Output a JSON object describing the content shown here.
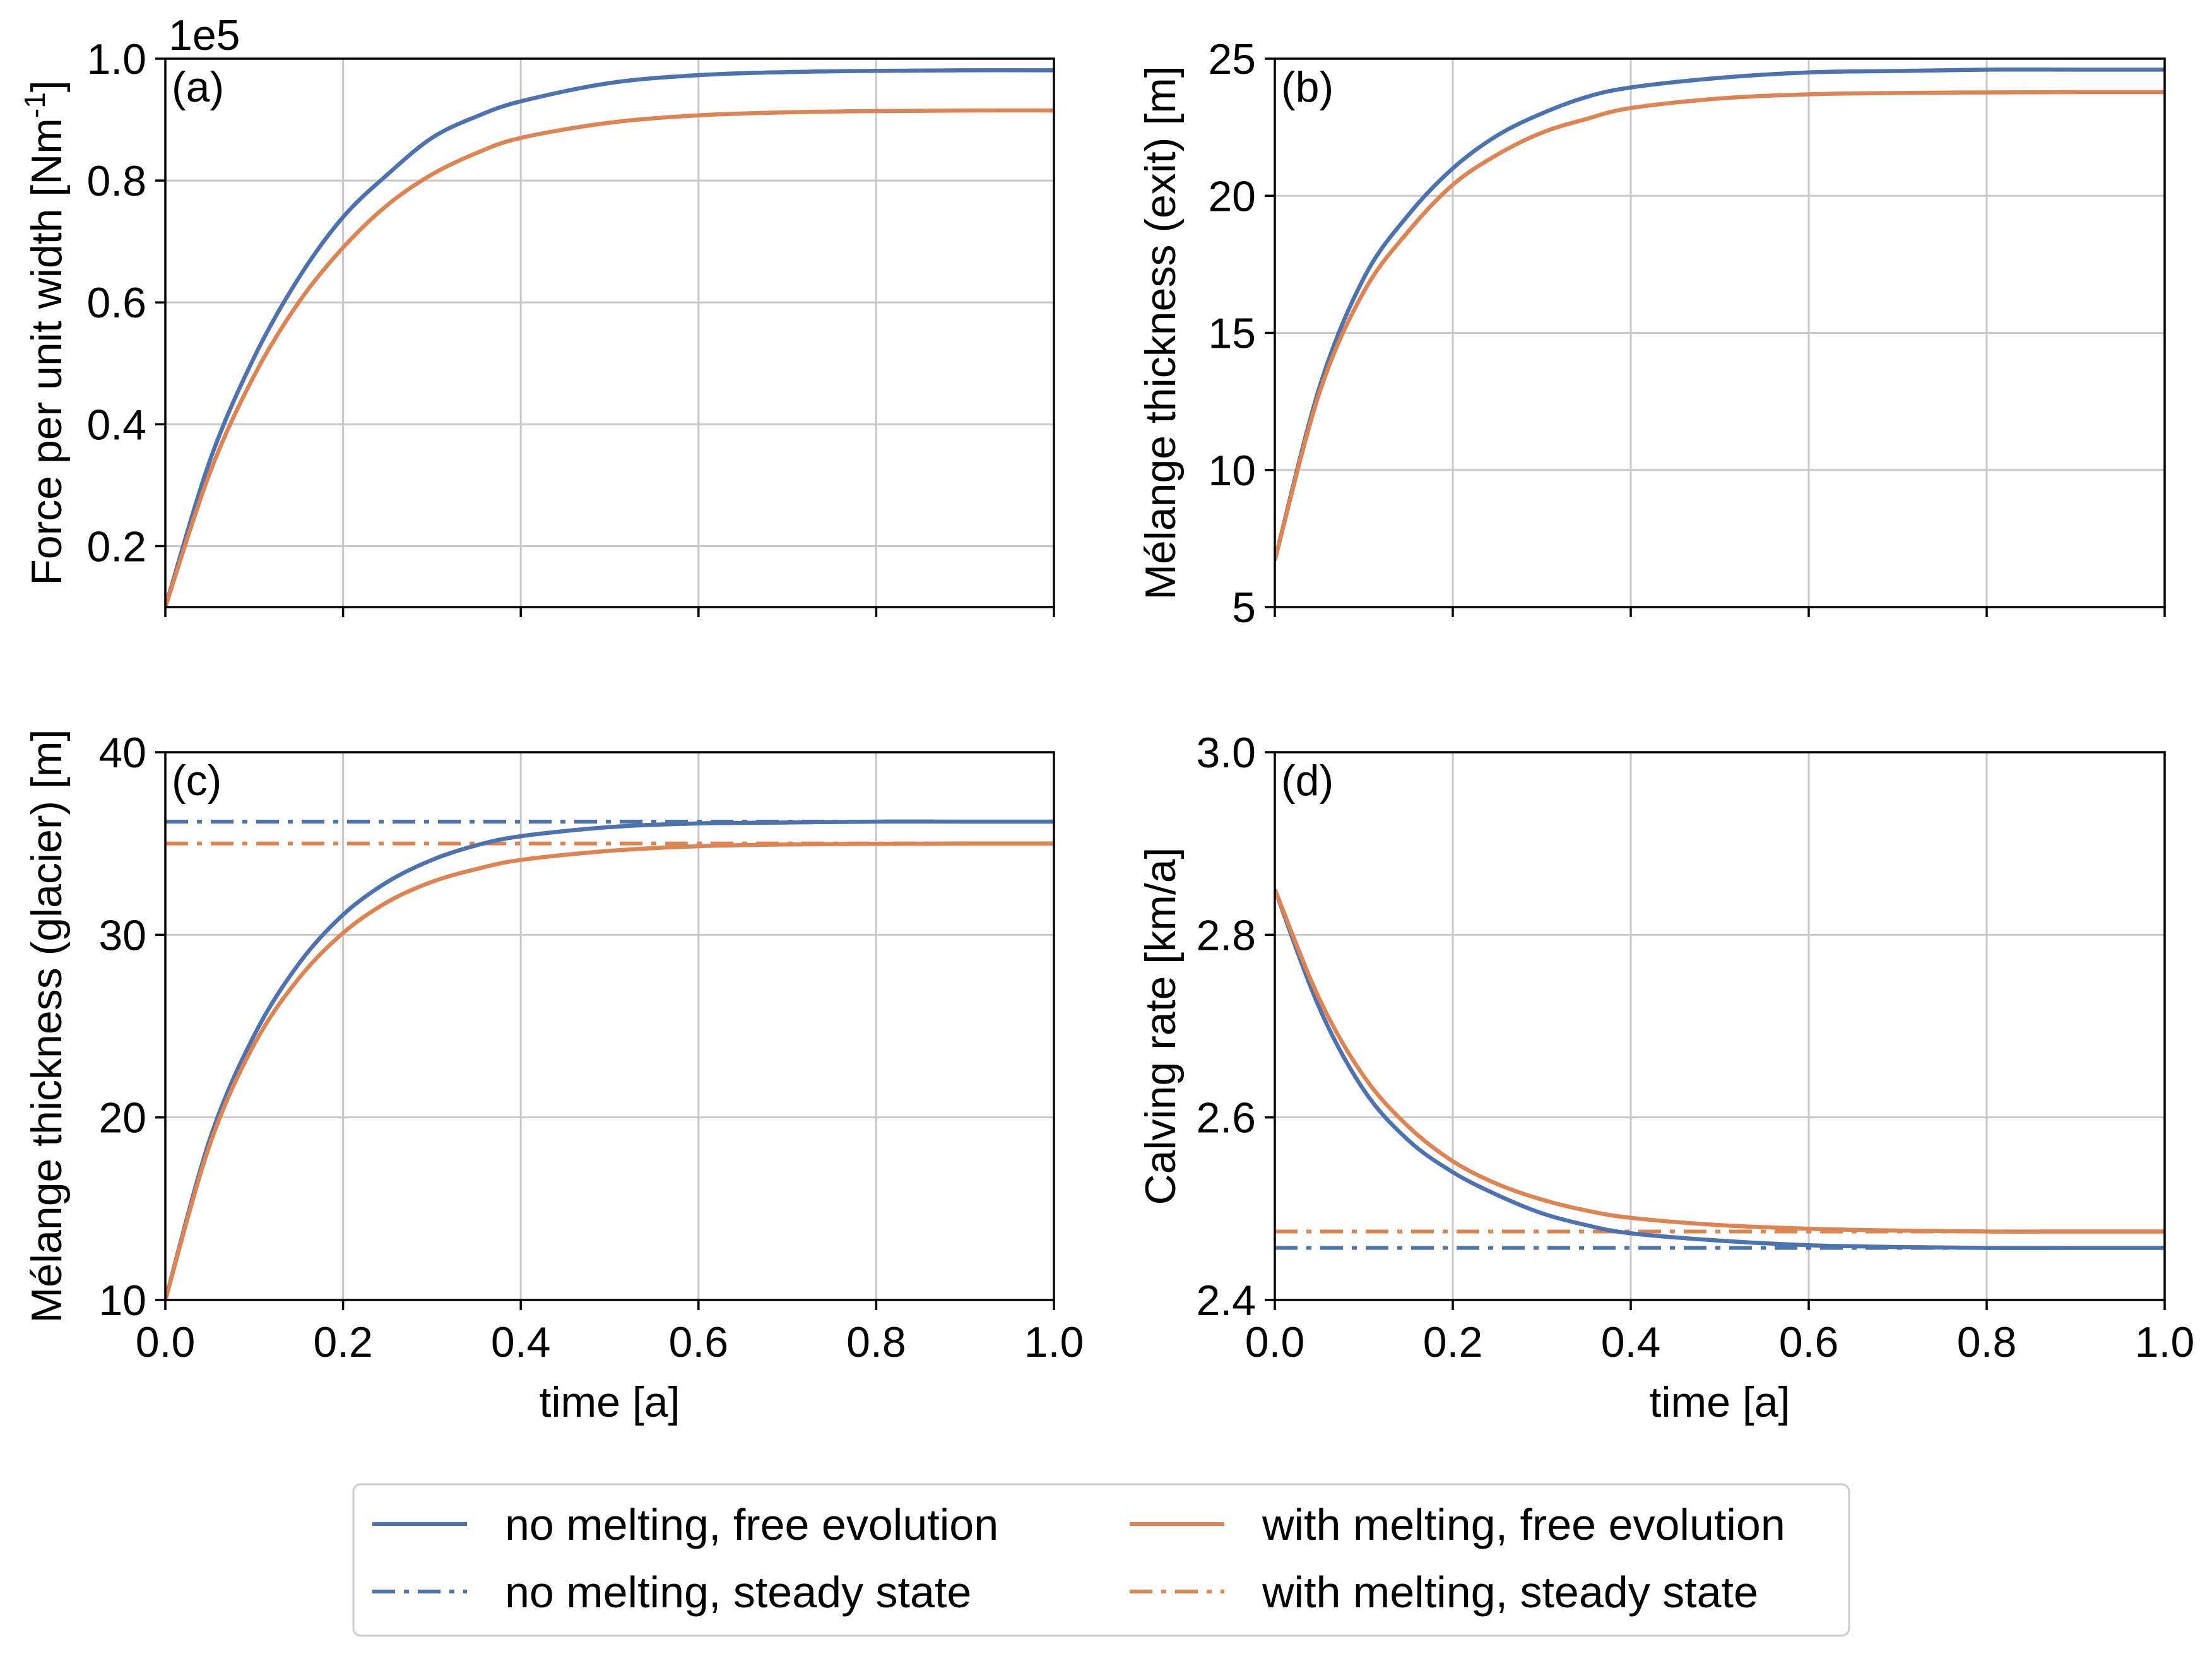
{
  "colors": {
    "no_melting": "#4c72b0",
    "with_melting": "#dd8452"
  },
  "legend": {
    "entries": [
      {
        "key": "nm_free",
        "label": "no melting, free evolution",
        "color": "#4c72b0",
        "style": "solid"
      },
      {
        "key": "nm_steady",
        "label": "no melting, steady state",
        "color": "#4c72b0",
        "style": "dashdot"
      },
      {
        "key": "wm_free",
        "label": "with melting, free evolution",
        "color": "#dd8452",
        "style": "solid"
      },
      {
        "key": "wm_steady",
        "label": "with melting, steady state",
        "color": "#dd8452",
        "style": "dashdot"
      }
    ]
  },
  "chart_data": [
    {
      "panel": "(a)",
      "type": "line",
      "xlabel": "",
      "ylabel": "Force per unit width [Nm",
      "ylabel_sup": "-1",
      "ylabel_end": "]",
      "scale_label": "1e5",
      "xlim": [
        0,
        1
      ],
      "ylim": [
        0.1,
        1.0
      ],
      "xticks": [
        "0.0",
        "0.2",
        "0.4",
        "0.6",
        "0.8",
        "1.0"
      ],
      "show_xticklabels": false,
      "yticks": [
        0.2,
        0.4,
        0.6,
        0.8,
        1.0
      ],
      "yticklabels": [
        "0.2",
        "0.4",
        "0.6",
        "0.8",
        "1.0"
      ],
      "grid": true,
      "x": [
        0,
        0.05,
        0.1,
        0.15,
        0.2,
        0.25,
        0.3,
        0.35,
        0.4,
        0.5,
        0.6,
        0.7,
        0.8,
        0.9,
        1.0
      ],
      "series": [
        {
          "key": "nm_free",
          "values": [
            0.1,
            0.34,
            0.51,
            0.64,
            0.74,
            0.81,
            0.87,
            0.905,
            0.93,
            0.96,
            0.973,
            0.978,
            0.98,
            0.981,
            0.981
          ]
        },
        {
          "key": "wm_free",
          "values": [
            0.1,
            0.32,
            0.48,
            0.6,
            0.69,
            0.76,
            0.81,
            0.845,
            0.87,
            0.895,
            0.907,
            0.912,
            0.914,
            0.915,
            0.915
          ]
        }
      ]
    },
    {
      "panel": "(b)",
      "type": "line",
      "xlabel": "",
      "ylabel": "Mélange thickness (exit) [m]",
      "xlim": [
        0,
        1
      ],
      "ylim": [
        5,
        25
      ],
      "xticks": [
        "0.0",
        "0.2",
        "0.4",
        "0.6",
        "0.8",
        "1.0"
      ],
      "show_xticklabels": false,
      "yticks": [
        5,
        10,
        15,
        20,
        25
      ],
      "yticklabels": [
        "5",
        "10",
        "15",
        "20",
        "25"
      ],
      "grid": true,
      "x": [
        0,
        0.05,
        0.1,
        0.15,
        0.2,
        0.25,
        0.3,
        0.35,
        0.4,
        0.5,
        0.6,
        0.7,
        0.8,
        0.9,
        1.0
      ],
      "series": [
        {
          "key": "nm_free",
          "values": [
            6.7,
            13.0,
            17.0,
            19.3,
            21.0,
            22.2,
            23.0,
            23.6,
            23.95,
            24.3,
            24.5,
            24.55,
            24.6,
            24.6,
            24.6
          ]
        },
        {
          "key": "wm_free",
          "values": [
            6.7,
            12.8,
            16.5,
            18.7,
            20.4,
            21.5,
            22.3,
            22.8,
            23.2,
            23.55,
            23.7,
            23.75,
            23.77,
            23.78,
            23.78
          ]
        }
      ]
    },
    {
      "panel": "(c)",
      "type": "line",
      "xlabel": "time [a]",
      "ylabel": "Mélange thickness (glacier) [m]",
      "xlim": [
        0,
        1
      ],
      "ylim": [
        10,
        40
      ],
      "xticks": [
        "0.0",
        "0.2",
        "0.4",
        "0.6",
        "0.8",
        "1.0"
      ],
      "show_xticklabels": true,
      "yticks": [
        10,
        20,
        30,
        40
      ],
      "yticklabels": [
        "10",
        "20",
        "30",
        "40"
      ],
      "grid": true,
      "x": [
        0,
        0.05,
        0.1,
        0.15,
        0.2,
        0.25,
        0.3,
        0.35,
        0.4,
        0.5,
        0.6,
        0.7,
        0.8,
        0.9,
        1.0
      ],
      "series": [
        {
          "key": "nm_free",
          "values": [
            10.0,
            18.8,
            24.5,
            28.4,
            31.1,
            32.9,
            34.1,
            34.9,
            35.4,
            35.9,
            36.1,
            36.15,
            36.2,
            36.2,
            36.2
          ]
        },
        {
          "key": "wm_free",
          "values": [
            10.0,
            18.5,
            24.0,
            27.6,
            30.1,
            31.8,
            32.9,
            33.6,
            34.1,
            34.6,
            34.85,
            34.95,
            34.98,
            35.0,
            35.0
          ]
        }
      ],
      "steady_lines": [
        {
          "key": "nm_steady",
          "value": 36.2
        },
        {
          "key": "wm_steady",
          "value": 35.0
        }
      ]
    },
    {
      "panel": "(d)",
      "type": "line",
      "xlabel": "time [a]",
      "ylabel": "Calving rate [km/a]",
      "xlim": [
        0,
        1
      ],
      "ylim": [
        2.4,
        3.0
      ],
      "xticks": [
        "0.0",
        "0.2",
        "0.4",
        "0.6",
        "0.8",
        "1.0"
      ],
      "show_xticklabels": true,
      "yticks": [
        2.4,
        2.6,
        2.8,
        3.0
      ],
      "yticklabels": [
        "2.4",
        "2.6",
        "2.8",
        "3.0"
      ],
      "grid": true,
      "x": [
        0,
        0.05,
        0.1,
        0.15,
        0.2,
        0.25,
        0.3,
        0.35,
        0.4,
        0.5,
        0.6,
        0.7,
        0.8,
        0.9,
        1.0
      ],
      "series": [
        {
          "key": "nm_free",
          "values": [
            2.85,
            2.72,
            2.63,
            2.575,
            2.54,
            2.515,
            2.495,
            2.482,
            2.473,
            2.465,
            2.46,
            2.458,
            2.457,
            2.457,
            2.457
          ]
        },
        {
          "key": "wm_free",
          "values": [
            2.85,
            2.73,
            2.645,
            2.59,
            2.552,
            2.527,
            2.51,
            2.498,
            2.49,
            2.482,
            2.478,
            2.476,
            2.475,
            2.475,
            2.475
          ]
        }
      ],
      "steady_lines": [
        {
          "key": "nm_steady",
          "value": 2.457
        },
        {
          "key": "wm_steady",
          "value": 2.475
        }
      ]
    }
  ]
}
